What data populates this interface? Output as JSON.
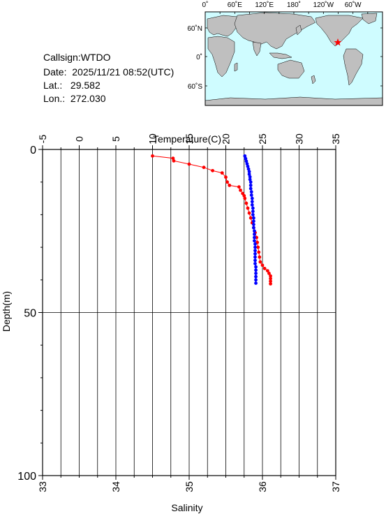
{
  "station": {
    "callsign_label": "Callsign:",
    "callsign": "WTDO",
    "date_label": "Date:",
    "date": "2025/11/21 08:52(UTC)",
    "lat_label": "Lat.:",
    "lat": "29.582",
    "lon_label": "Lon.:",
    "lon": "272.030"
  },
  "map": {
    "top_ticks": [
      "0˚",
      "60˚E",
      "120˚E",
      "180˚",
      "120˚W",
      "60˚W"
    ],
    "left_ticks": [
      "60˚N",
      "0˚",
      "60˚S"
    ],
    "ocean_color": "#cffcff",
    "land_color": "#bfbfbf",
    "marker_color": "#ff0000"
  },
  "chart_data": {
    "type": "line",
    "top_axis_label": "Temperature(C)",
    "bottom_axis_label": "Salinity",
    "y_axis_label": "Depth(m)",
    "temperature_range": [
      -5,
      35
    ],
    "temperature_ticks": [
      "-5",
      "0",
      "5",
      "10",
      "15",
      "20",
      "25",
      "30",
      "35"
    ],
    "salinity_range": [
      33,
      37
    ],
    "salinity_ticks": [
      "33",
      "34",
      "35",
      "36",
      "37"
    ],
    "depth_range": [
      0,
      100
    ],
    "depth_ticks": [
      "0",
      "50",
      "100"
    ],
    "grid": true,
    "series": [
      {
        "quantity": "temperature",
        "color": "#ff0000",
        "points": [
          [
            10.0,
            2.0
          ],
          [
            12.8,
            2.7
          ],
          [
            12.9,
            3.5
          ],
          [
            15.0,
            4.5
          ],
          [
            17.0,
            5.5
          ],
          [
            18.2,
            6.5
          ],
          [
            19.5,
            7.2
          ],
          [
            20.0,
            8.5
          ],
          [
            20.2,
            10.0
          ],
          [
            20.5,
            11.0
          ],
          [
            21.8,
            11.5
          ],
          [
            22.0,
            12.5
          ],
          [
            22.3,
            13.5
          ],
          [
            22.5,
            14.2
          ],
          [
            22.6,
            15.0
          ],
          [
            22.8,
            16.5
          ],
          [
            23.0,
            18.0
          ],
          [
            23.2,
            19.5
          ],
          [
            23.4,
            21.0
          ],
          [
            23.6,
            22.5
          ],
          [
            23.8,
            24.0
          ],
          [
            24.0,
            25.5
          ],
          [
            24.2,
            27.0
          ],
          [
            24.3,
            28.5
          ],
          [
            24.4,
            30.0
          ],
          [
            24.5,
            31.5
          ],
          [
            24.6,
            33.0
          ],
          [
            24.7,
            34.5
          ],
          [
            25.0,
            35.5
          ],
          [
            25.3,
            36.5
          ],
          [
            25.7,
            37.2
          ],
          [
            25.9,
            38.0
          ],
          [
            26.1,
            38.8
          ],
          [
            26.1,
            39.6
          ],
          [
            26.1,
            40.4
          ],
          [
            26.1,
            41.2
          ]
        ]
      },
      {
        "quantity": "salinity",
        "color": "#0000ff",
        "points": [
          [
            35.76,
            2.0
          ],
          [
            35.77,
            2.8
          ],
          [
            35.78,
            3.6
          ],
          [
            35.79,
            4.4
          ],
          [
            35.8,
            5.2
          ],
          [
            35.81,
            6.0
          ],
          [
            35.82,
            6.8
          ],
          [
            35.82,
            7.6
          ],
          [
            35.83,
            8.4
          ],
          [
            35.83,
            9.2
          ],
          [
            35.84,
            10.0
          ],
          [
            35.84,
            11.0
          ],
          [
            35.84,
            12.0
          ],
          [
            35.85,
            13.0
          ],
          [
            35.85,
            14.0
          ],
          [
            35.86,
            15.0
          ],
          [
            35.86,
            16.0
          ],
          [
            35.86,
            17.0
          ],
          [
            35.87,
            18.0
          ],
          [
            35.87,
            19.0
          ],
          [
            35.87,
            20.0
          ],
          [
            35.88,
            21.0
          ],
          [
            35.88,
            22.0
          ],
          [
            35.88,
            23.0
          ],
          [
            35.88,
            24.0
          ],
          [
            35.89,
            25.0
          ],
          [
            35.89,
            26.0
          ],
          [
            35.89,
            27.0
          ],
          [
            35.89,
            28.0
          ],
          [
            35.9,
            29.0
          ],
          [
            35.9,
            30.0
          ],
          [
            35.9,
            31.0
          ],
          [
            35.9,
            32.0
          ],
          [
            35.9,
            33.0
          ],
          [
            35.9,
            34.0
          ],
          [
            35.9,
            35.0
          ],
          [
            35.91,
            36.0
          ],
          [
            35.91,
            37.0
          ],
          [
            35.91,
            38.0
          ],
          [
            35.91,
            39.0
          ],
          [
            35.91,
            40.0
          ],
          [
            35.91,
            41.0
          ]
        ]
      }
    ]
  }
}
